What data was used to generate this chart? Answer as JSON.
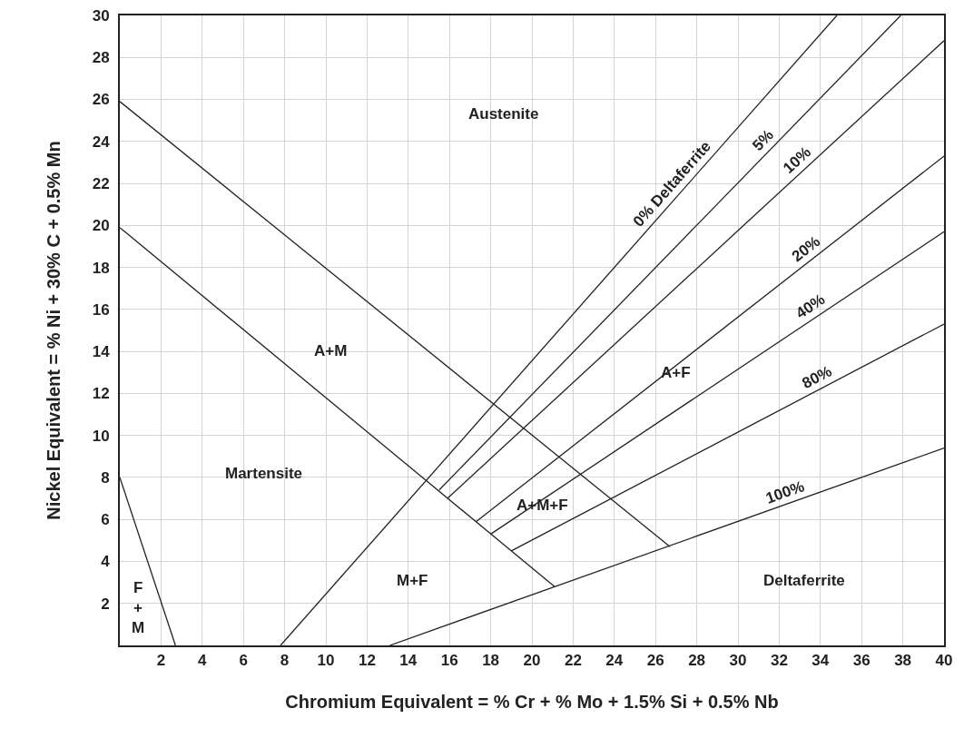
{
  "chart_data": {
    "type": "line",
    "xlabel": "Chromium Equivalent = % Cr + % Mo + 1.5% Si + 0.5% Nb",
    "ylabel": "Nickel Equivalent = % Ni + 30% C + 0.5% Mn",
    "xlim": [
      0,
      40
    ],
    "ylim": [
      0,
      30
    ],
    "xticks": [
      2,
      4,
      6,
      8,
      10,
      12,
      14,
      16,
      18,
      20,
      22,
      24,
      26,
      28,
      30,
      32,
      34,
      36,
      38,
      40
    ],
    "yticks": [
      2,
      4,
      6,
      8,
      10,
      12,
      14,
      16,
      18,
      20,
      22,
      24,
      26,
      28,
      30
    ],
    "grid": true,
    "legend": false,
    "marker": "none",
    "line_style": "solid",
    "series": [
      {
        "color": "#222222",
        "x": [
          0,
          2.7
        ],
        "values": [
          8.0,
          0
        ]
      },
      {
        "color": "#222222",
        "x": [
          0,
          26.7
        ],
        "values": [
          25.9,
          4.7
        ]
      },
      {
        "color": "#222222",
        "x": [
          0,
          21.1
        ],
        "values": [
          19.9,
          2.8
        ]
      },
      {
        "name": "0% Deltaferrite",
        "color": "#222222",
        "x": [
          7.8,
          34.8
        ],
        "values": [
          0,
          30
        ]
      },
      {
        "name": "5%",
        "color": "#222222",
        "x": [
          15.5,
          37.9
        ],
        "values": [
          7.4,
          30
        ]
      },
      {
        "name": "10%",
        "color": "#222222",
        "x": [
          15.9,
          40
        ],
        "values": [
          7.0,
          28.8
        ]
      },
      {
        "name": "20%",
        "color": "#222222",
        "x": [
          17.3,
          40
        ],
        "values": [
          5.9,
          23.3
        ]
      },
      {
        "name": "40%",
        "color": "#222222",
        "x": [
          18.0,
          40
        ],
        "values": [
          5.3,
          19.7
        ]
      },
      {
        "name": "80%",
        "color": "#222222",
        "x": [
          19.0,
          40
        ],
        "values": [
          4.5,
          15.3
        ]
      },
      {
        "name": "100%",
        "color": "#222222",
        "x": [
          13.1,
          40
        ],
        "values": [
          0,
          9.4
        ]
      }
    ],
    "annotations": [
      "Austenite",
      "A+M",
      "Martensite",
      "F\n+\nM",
      "A+F",
      "A+M+F",
      "M+F",
      "Deltaferrite"
    ]
  }
}
